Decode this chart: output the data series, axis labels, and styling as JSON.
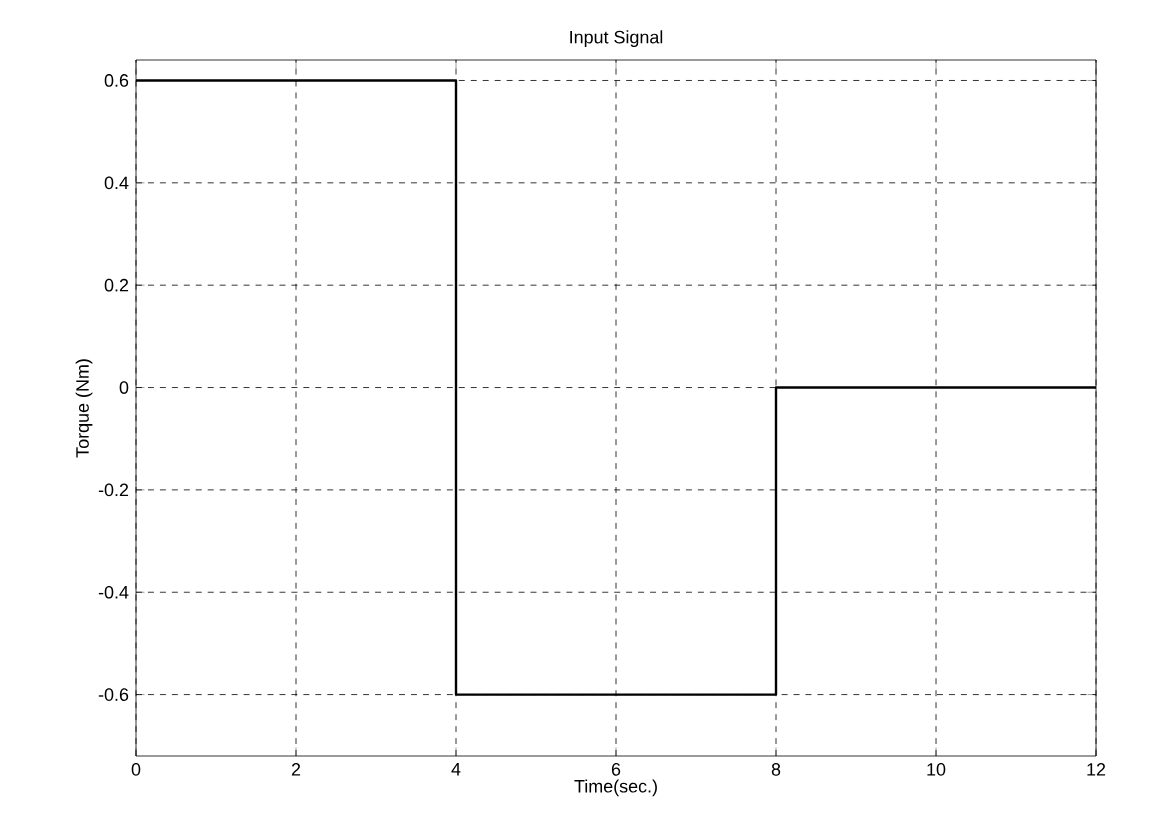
{
  "chart_data": {
    "type": "step",
    "title": "Input Signal",
    "xlabel": "Time(sec.)",
    "ylabel": "Torque (Nm)",
    "x": [
      0,
      4,
      8,
      12
    ],
    "series": [
      {
        "color": "#000000",
        "values": [
          0.6,
          -0.6,
          0,
          0
        ]
      }
    ],
    "xlim": [
      0,
      12
    ],
    "ylim": [
      -0.72,
      0.64
    ],
    "xticks": [
      0,
      2,
      4,
      6,
      8,
      10,
      12
    ],
    "yticks": [
      {
        "value": -0.6,
        "label": "-0.6"
      },
      {
        "value": -0.4,
        "label": "-0.4"
      },
      {
        "value": -0.2,
        "label": "-0.2"
      },
      {
        "value": 0,
        "label": "0"
      },
      {
        "value": 0.2,
        "label": "0.2"
      },
      {
        "value": 0.4,
        "label": "0.4"
      },
      {
        "value": 0.6,
        "label": "0.6"
      }
    ],
    "grid": true,
    "line_style": "solid",
    "marker": "none"
  }
}
